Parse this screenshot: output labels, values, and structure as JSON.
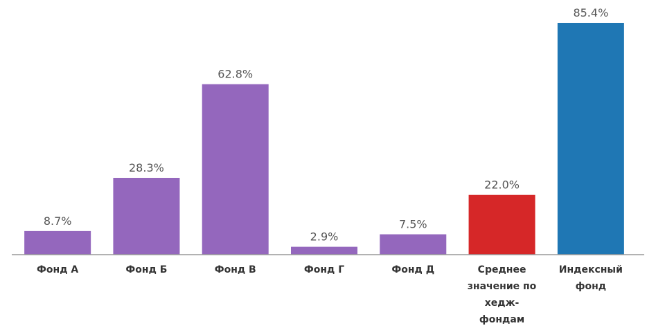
{
  "chart_data": {
    "type": "bar",
    "categories": [
      "Фонд А",
      "Фонд Б",
      "Фонд В",
      "Фонд Г",
      "Фонд Д",
      "Среднее значение по хедж-фондам",
      "Индексный фонд"
    ],
    "values": [
      8.7,
      28.3,
      62.8,
      2.9,
      7.5,
      22.0,
      85.4
    ],
    "value_labels": [
      "8.7%",
      "28.3%",
      "62.8%",
      "2.9%",
      "7.5%",
      "22.0%",
      "85.4%"
    ],
    "colors": [
      "#9467bd",
      "#9467bd",
      "#9467bd",
      "#9467bd",
      "#9467bd",
      "#d62728",
      "#1f77b4"
    ]
  }
}
